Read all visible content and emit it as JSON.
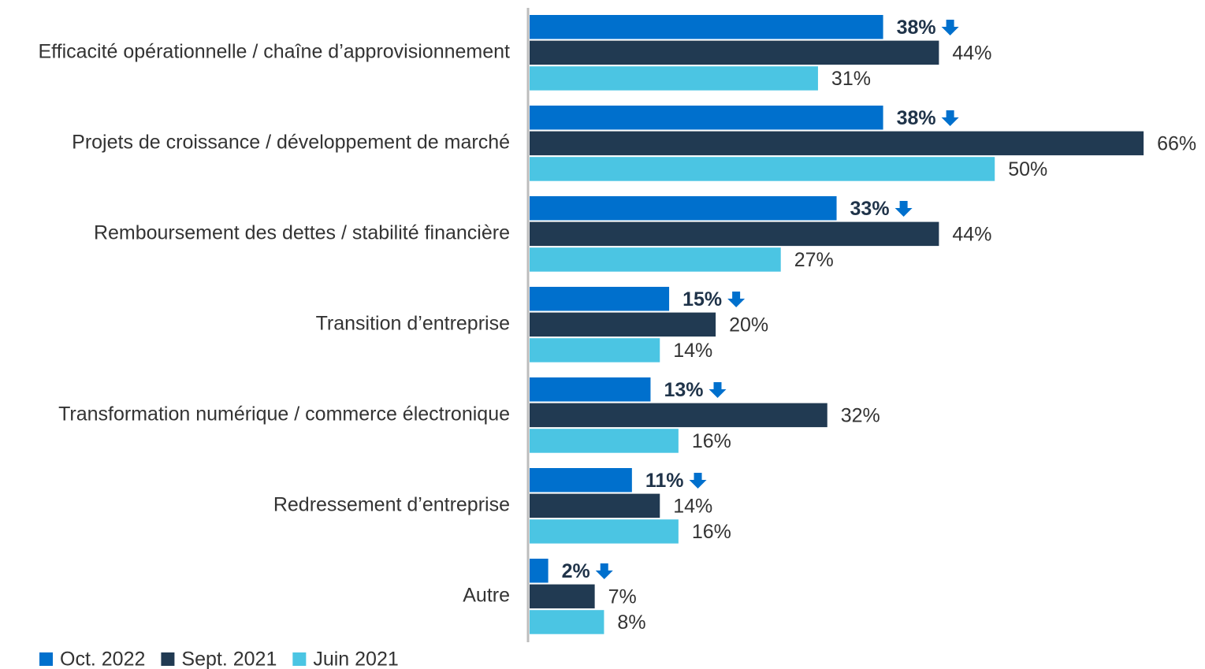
{
  "chart_data": {
    "type": "bar",
    "orientation": "horizontal",
    "categories": [
      "Efficacité opérationnelle / chaîne d’approvisionnement",
      "Projets de croissance / développement de marché",
      "Remboursement des dettes / stabilité financière",
      "Transition d’entreprise",
      "Transformation numérique / commerce électronique",
      "Redressement d’entreprise",
      "Autre"
    ],
    "series": [
      {
        "name": "Oct. 2022",
        "color": "#0070cd",
        "values": [
          38,
          38,
          33,
          15,
          13,
          11,
          2
        ],
        "value_labels": [
          "38%",
          "38%",
          "33%",
          "15%",
          "13%",
          "11%",
          "2%"
        ]
      },
      {
        "name": "Sept. 2021",
        "color": "#213a52",
        "values": [
          44,
          66,
          44,
          20,
          32,
          14,
          7
        ],
        "value_labels": [
          "44%",
          "66%",
          "44%",
          "20%",
          "32%",
          "14%",
          "7%"
        ]
      },
      {
        "name": "Juin 2021",
        "color": "#4bc5e3",
        "values": [
          31,
          50,
          27,
          14,
          16,
          16,
          8
        ],
        "value_labels": [
          "31%",
          "50%",
          "27%",
          "14%",
          "16%",
          "16%",
          "8%"
        ]
      }
    ],
    "xlim": [
      0,
      72.6
    ],
    "legend": "bottom-left"
  }
}
